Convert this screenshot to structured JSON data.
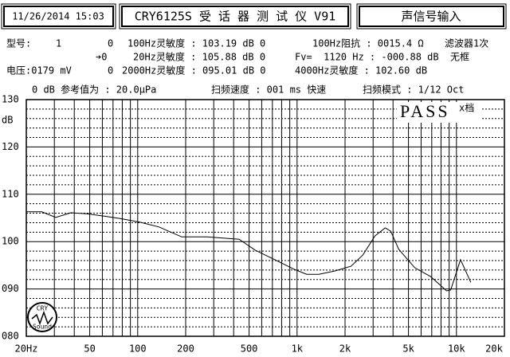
{
  "header": {
    "datetime": "11/26/2014 15:03",
    "model_title": "CRY6125S 受 话 器 测 试 仪 V91",
    "input_label": "声信号输入"
  },
  "info": [
    [
      "型号:",
      "1",
      "0",
      "100Hz灵敏度 : 103.19 dB 0",
      "100Hz阻抗 : 0015.4 Ω",
      "滤波器1次"
    ],
    [
      "➔0",
      "20Hz灵敏度 : 105.88 dB 0",
      "Fv=  1120 Hz : -000.88 dB",
      "无框"
    ],
    [
      "电压:0179 mV",
      "0",
      "2000Hz灵敏度 : 095.01 dB 0",
      "4000Hz灵敏度 : 102.60 dB"
    ],
    [
      "0 dB 参考值为 : 20.0μPa",
      "扫频速度 : 001 ms 快速",
      "扫频模式 : 1/12 Oct"
    ]
  ],
  "badge": {
    "pass": "PASS",
    "gear": "x档"
  },
  "logo": {
    "top": "CRY",
    "bottom": "Sound"
  },
  "chart_data": {
    "type": "line",
    "y_label": "dB",
    "color": "#000000",
    "x_scale": "log",
    "xlim": [
      20,
      20000
    ],
    "ylim": [
      80,
      130
    ],
    "xticks": [
      {
        "value": 20,
        "label": "20Hz"
      },
      50,
      100,
      200,
      500,
      {
        "value": 1000,
        "label": "1k"
      },
      {
        "value": 2000,
        "label": "2k"
      },
      {
        "value": 5000,
        "label": "5k"
      },
      {
        "value": 10000,
        "label": "10k"
      },
      {
        "value": 20000,
        "label": "20k"
      }
    ],
    "yticks": [
      {
        "value": 80,
        "label": "080"
      },
      {
        "value": 90,
        "label": "090"
      },
      100,
      110,
      120,
      130
    ],
    "x_minor_grid": [
      30,
      40,
      60,
      70,
      80,
      90,
      300,
      400,
      600,
      700,
      800,
      900,
      3000,
      4000,
      6000,
      7000,
      8000,
      9000
    ],
    "y_minor_grid": [
      82,
      84,
      86,
      88,
      92,
      94,
      96,
      98,
      102,
      104,
      106,
      108,
      112,
      114,
      116,
      118,
      122,
      124,
      126,
      128
    ],
    "x": [
      20,
      25,
      30.6,
      38,
      48,
      61,
      77,
      103,
      136,
      189,
      272,
      433,
      546,
      724,
      965,
      1150,
      1370,
      1730,
      2180,
      2590,
      3080,
      3570,
      3870,
      4340,
      5470,
      6900,
      8670,
      9200,
      10600,
      12300
    ],
    "values": [
      106.3,
      106.3,
      105.1,
      106.1,
      105.9,
      105.4,
      104.9,
      104.1,
      103.1,
      101.0,
      101.0,
      100.5,
      98.2,
      96.2,
      94.1,
      93.1,
      93.1,
      93.8,
      94.8,
      97.2,
      101.2,
      102.9,
      102.2,
      98.4,
      94.5,
      92.6,
      89.6,
      89.8,
      96.2,
      91.4
    ]
  }
}
